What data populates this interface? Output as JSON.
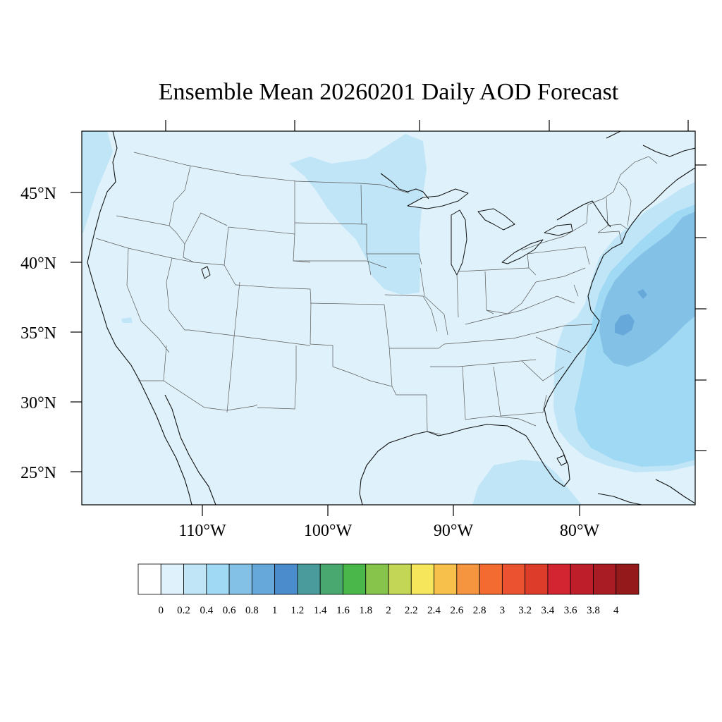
{
  "title": "Ensemble Mean 20260201 Daily AOD Forecast",
  "lat_labels": [
    "45°N",
    "40°N",
    "35°N",
    "30°N",
    "25°N"
  ],
  "lon_labels": [
    "110°W",
    "100°W",
    "90°W",
    "80°W"
  ],
  "colorbar": {
    "labels": [
      "0",
      "0.2",
      "0.4",
      "0.6",
      "0.8",
      "1",
      "1.2",
      "1.4",
      "1.6",
      "1.8",
      "2",
      "2.2",
      "2.4",
      "2.6",
      "2.8",
      "3",
      "3.2",
      "3.4",
      "3.6",
      "3.8",
      "4"
    ],
    "colors": [
      "#ffffff",
      "#dff2fb",
      "#bfe5f7",
      "#a0d9f4",
      "#84c1e6",
      "#67a8db",
      "#4a8ccc",
      "#4a9b9b",
      "#49a86f",
      "#4ab74a",
      "#86c44c",
      "#c4d655",
      "#f6e65b",
      "#f7c04a",
      "#f5953f",
      "#f36b30",
      "#ea5230",
      "#dd3c2b",
      "#d22431",
      "#bd1e2a",
      "#a91c24",
      "#93191b"
    ]
  },
  "map_data": {
    "variable": "Daily AOD",
    "date": "20260201",
    "field_levels": {
      "land": "0-0.2",
      "northern_plains_band": "0.2-0.4",
      "gulf_and_atlantic": "0.4-0.6",
      "atlantic_plume": "0.6-0.8",
      "plume_core": "0.8-1"
    }
  }
}
